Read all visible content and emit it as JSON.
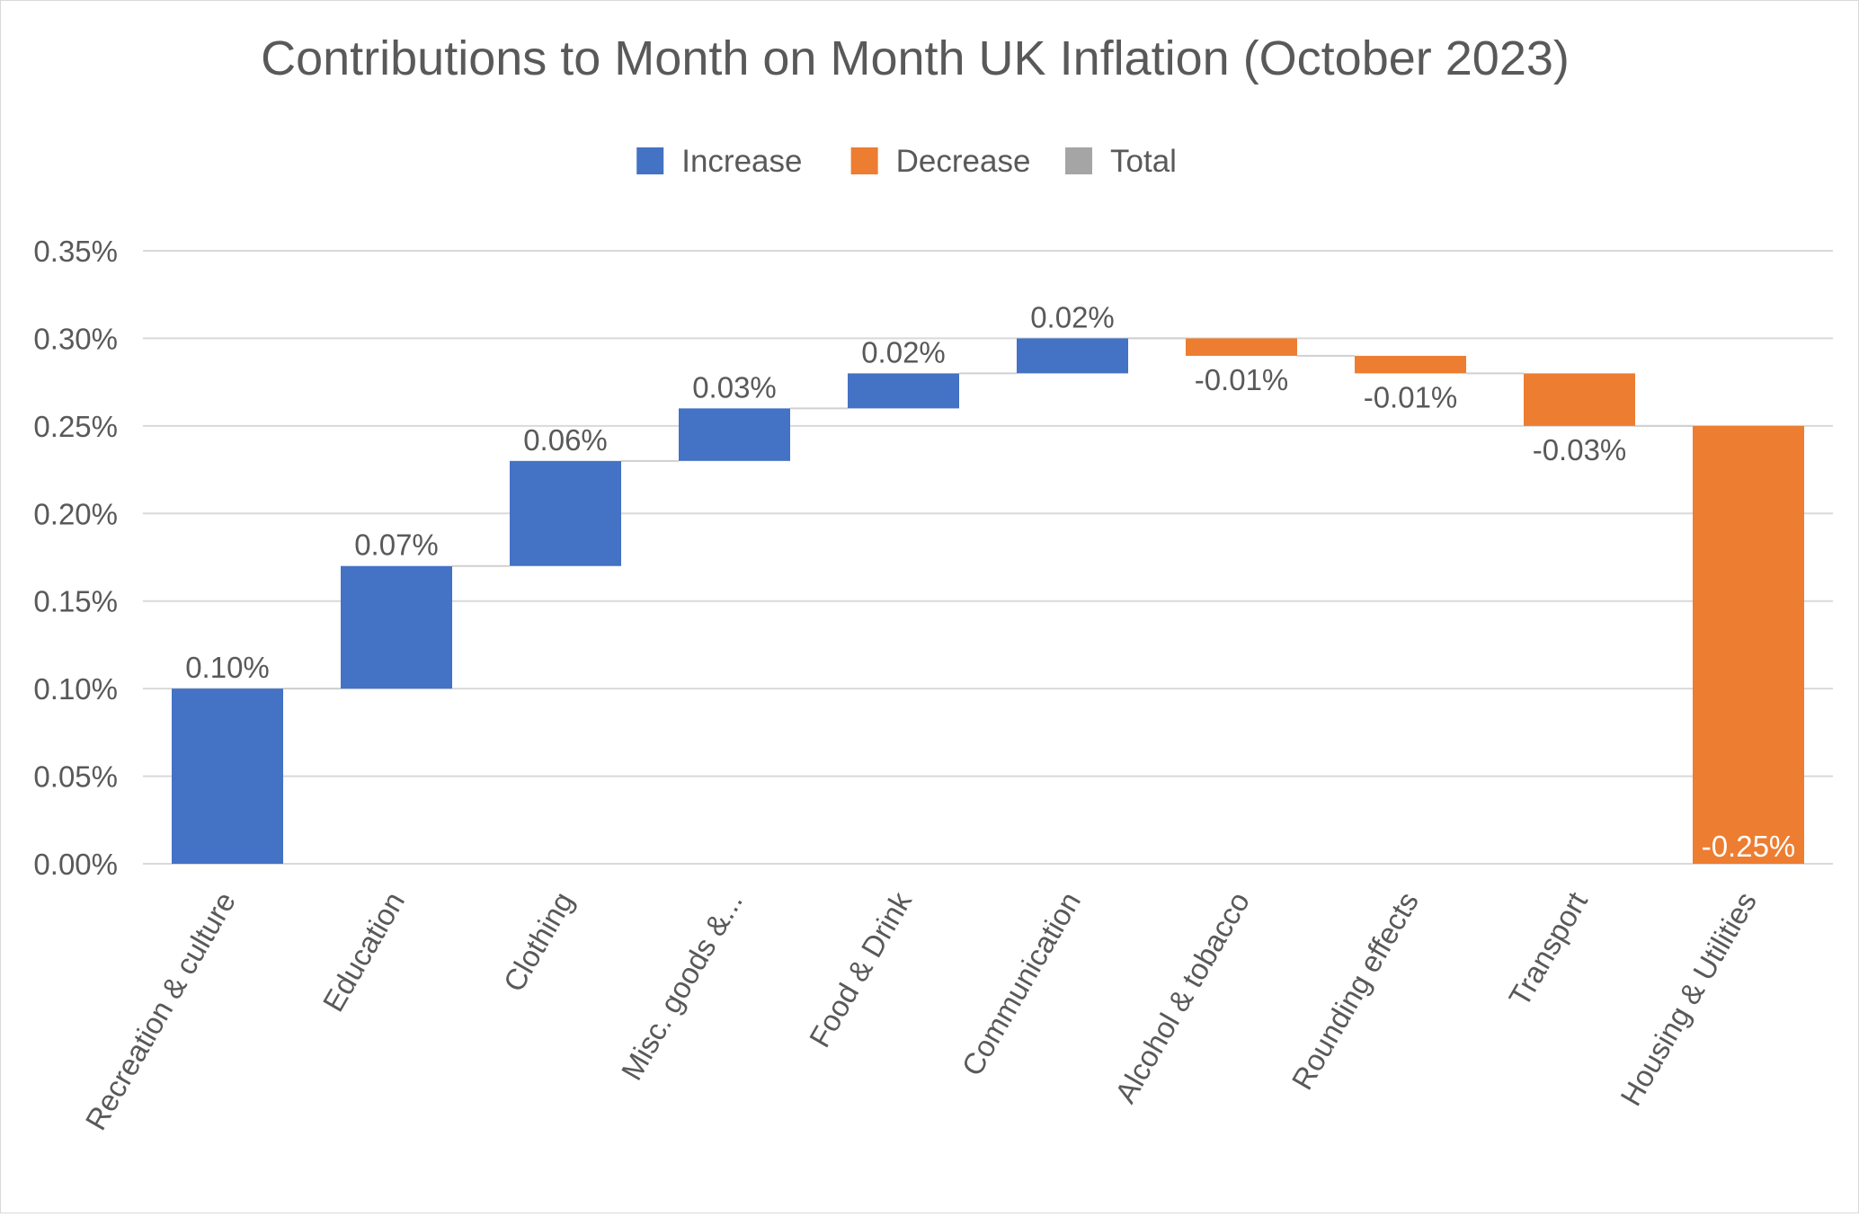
{
  "chart_data": {
    "type": "bar",
    "subtype": "waterfall",
    "title": "Contributions to Month on Month UK Inflation (October 2023)",
    "legend": {
      "position": "top",
      "entries": [
        {
          "name": "Increase",
          "color": "#4472C4"
        },
        {
          "name": "Decrease",
          "color": "#ED7D31"
        },
        {
          "name": "Total",
          "color": "#A5A5A5"
        }
      ]
    },
    "categories": [
      "Recreation & culture",
      "Education",
      "Clothing",
      "Misc. goods &...",
      "Food & Drink",
      "Communication",
      "Alcohol & tobacco",
      "Rounding effects",
      "Transport",
      "Housing & Utilities"
    ],
    "values": [
      0.1,
      0.07,
      0.06,
      0.03,
      0.02,
      0.02,
      -0.01,
      -0.01,
      -0.03,
      -0.25
    ],
    "value_labels": [
      "0.10%",
      "0.07%",
      "0.06%",
      "0.03%",
      "0.02%",
      "0.02%",
      "-0.01%",
      "-0.01%",
      "-0.03%",
      "-0.25%"
    ],
    "ylim": [
      0,
      0.35
    ],
    "yticks": [
      0,
      0.05,
      0.1,
      0.15,
      0.2,
      0.25,
      0.3,
      0.35
    ],
    "ytick_labels": [
      "0.00%",
      "0.05%",
      "0.10%",
      "0.15%",
      "0.20%",
      "0.25%",
      "0.30%",
      "0.35%"
    ],
    "grid": true,
    "colors": {
      "increase": "#4472C4",
      "decrease": "#ED7D31",
      "total": "#A5A5A5",
      "text": "#595959",
      "grid": "#D9D9D9"
    }
  }
}
